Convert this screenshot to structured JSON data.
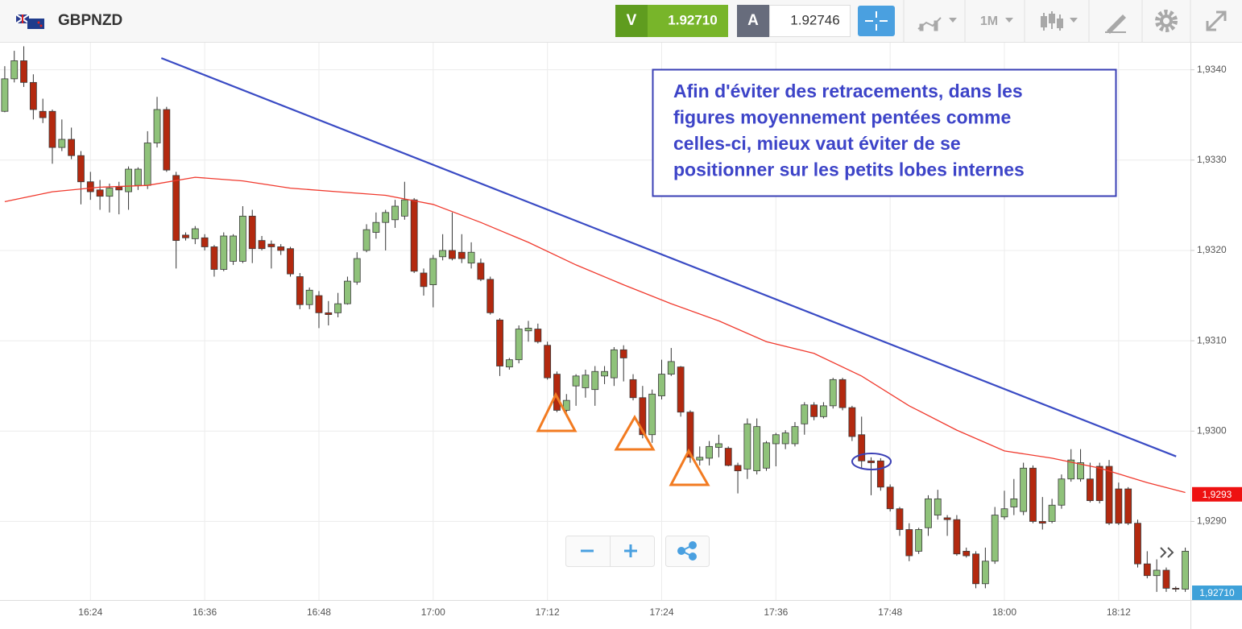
{
  "toolbar": {
    "symbol": "GBPNZD",
    "sell": {
      "label": "V",
      "price": "1.92710"
    },
    "buy": {
      "label": "A",
      "price": "1.92746"
    },
    "period": "1M"
  },
  "chart_data": {
    "type": "candlestick",
    "categories": [
      null,
      null,
      null,
      null,
      null,
      null,
      null,
      null,
      null,
      "16:24",
      null,
      null,
      null,
      null,
      null,
      null,
      null,
      null,
      null,
      null,
      null,
      "16:36",
      null,
      null,
      null,
      null,
      null,
      null,
      null,
      null,
      null,
      null,
      null,
      "16:48",
      null,
      null,
      null,
      null,
      null,
      null,
      null,
      null,
      null,
      null,
      null,
      "17:00",
      null,
      null,
      null,
      null,
      null,
      null,
      null,
      null,
      null,
      null,
      null,
      "17:12",
      null,
      null,
      null,
      null,
      null,
      null,
      null,
      null,
      null,
      null,
      null,
      "17:24",
      null,
      null,
      null,
      null,
      null,
      null,
      null,
      null,
      null,
      null,
      null,
      "17:36",
      null,
      null,
      null,
      null,
      null,
      null,
      null,
      null,
      null,
      null,
      null,
      "17:48",
      null,
      null,
      null,
      null,
      null,
      null,
      null,
      null,
      null,
      null,
      null,
      "18:00",
      null,
      null,
      null,
      null,
      null,
      null,
      null,
      null,
      null,
      null,
      null,
      "18:12",
      null,
      null,
      null,
      null,
      null,
      null,
      null
    ],
    "open": [
      1.93354,
      1.9339,
      1.9341,
      1.93386,
      1.93354,
      1.93354,
      1.93314,
      1.93323,
      1.93305,
      1.93276,
      1.93267,
      1.9326,
      1.9327,
      1.93265,
      1.93272,
      1.93272,
      1.93319,
      1.93356,
      1.93283,
      1.93217,
      1.93213,
      1.93214,
      1.93204,
      1.93179,
      1.93188,
      1.93188,
      1.93238,
      1.93211,
      1.93207,
      1.93204,
      1.93202,
      1.93171,
      1.9314,
      1.9315,
      1.93131,
      1.93131,
      1.93141,
      1.93165,
      1.932,
      1.9322,
      1.93231,
      1.93234,
      1.93238,
      1.93256,
      1.93175,
      1.93162,
      1.93193,
      1.932,
      1.93198,
      1.93186,
      1.93186,
      1.93168,
      1.93123,
      1.93071,
      1.93079,
      1.93111,
      1.93113,
      1.93095,
      1.93063,
      1.93023,
      1.9305,
      1.93048,
      1.93046,
      1.93061,
      1.93059,
      1.9309,
      1.93057,
      1.93037,
      1.92996,
      1.93039,
      1.93063,
      1.93071,
      1.93021,
      1.92968,
      1.9297,
      1.92982,
      1.92981,
      1.92962,
      1.92958,
      1.92956,
      1.92959,
      1.92986,
      1.92986,
      1.92986,
      1.93008,
      1.93029,
      1.93016,
      1.93028,
      1.93057,
      1.93026,
      1.92996,
      1.92967,
      1.92967,
      1.92938,
      1.92914,
      1.92891,
      1.92867,
      1.92893,
      1.92907,
      1.92904,
      1.92902,
      1.92867,
      1.92864,
      1.92831,
      1.92856,
      1.92905,
      1.92916,
      1.92911,
      1.92959,
      1.929,
      1.929,
      1.92918,
      1.92947,
      1.92947,
      1.92947,
      1.92961,
      1.92961,
      1.92936,
      1.92936,
      1.92898,
      1.92853,
      1.9284,
      1.92846,
      1.92826,
      1.92825
    ],
    "high": [
      1.93404,
      1.93421,
      1.93426,
      1.93395,
      1.93368,
      1.93356,
      1.93345,
      1.93336,
      1.9331,
      1.93287,
      1.93278,
      1.93274,
      1.93276,
      1.93293,
      1.93292,
      1.93332,
      1.9337,
      1.93359,
      1.93287,
      1.9322,
      1.93227,
      1.93218,
      1.93206,
      1.9322,
      1.93218,
      1.93249,
      1.93245,
      1.93216,
      1.93211,
      1.93207,
      1.93204,
      1.93175,
      1.93159,
      1.93155,
      1.93144,
      1.93153,
      1.93171,
      1.93198,
      1.93229,
      1.93242,
      1.93245,
      1.93256,
      1.93276,
      1.93258,
      1.9318,
      1.93195,
      1.93218,
      1.93242,
      1.93218,
      1.93209,
      1.93191,
      1.93171,
      1.93125,
      1.93081,
      1.93117,
      1.93122,
      1.93119,
      1.93099,
      1.93066,
      1.93041,
      1.93063,
      1.93068,
      1.93072,
      1.93072,
      1.93093,
      1.93095,
      1.93063,
      1.9305,
      1.93046,
      1.93079,
      1.93092,
      1.93072,
      1.93023,
      1.92983,
      1.92989,
      1.92996,
      1.92983,
      1.92965,
      1.93014,
      1.93014,
      1.92989,
      1.92998,
      1.93001,
      1.9301,
      1.93032,
      1.93032,
      1.93032,
      1.93059,
      1.93059,
      1.93028,
      1.93016,
      1.92971,
      1.9297,
      1.92941,
      1.92916,
      1.92898,
      1.92893,
      1.92929,
      1.92935,
      1.92907,
      1.92907,
      1.92871,
      1.92867,
      1.92871,
      1.92916,
      1.92934,
      1.92947,
      1.92965,
      1.92962,
      1.92927,
      1.92925,
      1.92952,
      1.9298,
      1.9298,
      1.92965,
      1.92965,
      1.92968,
      1.92943,
      1.92938,
      1.92902,
      1.92867,
      1.92858,
      1.92849,
      1.92828,
      1.92871
    ],
    "low": [
      1.93353,
      1.93386,
      1.93381,
      1.93345,
      1.93341,
      1.93296,
      1.9331,
      1.93301,
      1.93251,
      1.93256,
      1.93245,
      1.93242,
      1.9324,
      1.93245,
      1.93267,
      1.93268,
      1.93314,
      1.93287,
      1.9318,
      1.93211,
      1.93207,
      1.932,
      1.93171,
      1.93177,
      1.93184,
      1.93186,
      1.93186,
      1.932,
      1.9318,
      1.93195,
      1.93171,
      1.93135,
      1.93135,
      1.93114,
      1.93117,
      1.93126,
      1.9314,
      1.93162,
      1.93198,
      1.93213,
      1.932,
      1.93225,
      1.93234,
      1.93175,
      1.9315,
      1.93137,
      1.93189,
      1.93189,
      1.93186,
      1.9318,
      1.93166,
      1.93129,
      1.93061,
      1.93068,
      1.93075,
      1.93099,
      1.93097,
      1.93057,
      1.93021,
      1.93021,
      1.93028,
      1.93037,
      1.93028,
      1.93052,
      1.9305,
      1.93055,
      1.93034,
      1.92992,
      1.92987,
      1.93035,
      1.93061,
      1.93016,
      1.92965,
      1.92962,
      1.92962,
      1.92971,
      1.92961,
      1.92931,
      1.92947,
      1.92952,
      1.92956,
      1.92961,
      1.9298,
      1.92983,
      1.92996,
      1.93012,
      1.93014,
      1.93025,
      1.93023,
      1.92989,
      1.92959,
      1.92929,
      1.92934,
      1.92911,
      1.92884,
      1.92856,
      1.92864,
      1.92884,
      1.92902,
      1.92884,
      1.92862,
      1.9286,
      1.92826,
      1.92826,
      1.92853,
      1.92902,
      1.92907,
      1.92907,
      1.92898,
      1.92891,
      1.92898,
      1.92914,
      1.92944,
      1.92944,
      1.92921,
      1.9292,
      1.92896,
      1.92896,
      1.92896,
      1.92849,
      1.92837,
      1.92822,
      1.92822,
      1.92822,
      1.92822
    ],
    "close": [
      1.9339,
      1.9341,
      1.93386,
      1.93356,
      1.93347,
      1.93314,
      1.93323,
      1.93305,
      1.93276,
      1.93265,
      1.9326,
      1.93269,
      1.93267,
      1.9329,
      1.9329,
      1.93319,
      1.93356,
      1.93289,
      1.93211,
      1.93214,
      1.93224,
      1.93204,
      1.93179,
      1.93216,
      1.93216,
      1.93238,
      1.93202,
      1.93202,
      1.93204,
      1.932,
      1.93174,
      1.9314,
      1.93156,
      1.93131,
      1.93129,
      1.93141,
      1.93166,
      1.93191,
      1.93223,
      1.93231,
      1.93242,
      1.93249,
      1.93256,
      1.93177,
      1.9316,
      1.93191,
      1.932,
      1.93191,
      1.93191,
      1.93198,
      1.93168,
      1.93131,
      1.93072,
      1.93079,
      1.93113,
      1.93114,
      1.93099,
      1.93059,
      1.93023,
      1.93034,
      1.93061,
      1.93062,
      1.93066,
      1.93066,
      1.9309,
      1.93081,
      1.93037,
      1.92996,
      1.93041,
      1.93063,
      1.93077,
      1.93021,
      1.92971,
      1.92971,
      1.92983,
      1.92986,
      1.92962,
      1.92956,
      1.93008,
      1.93005,
      1.92987,
      1.92996,
      1.92998,
      1.93005,
      1.93029,
      1.93016,
      1.93028,
      1.93057,
      1.93026,
      1.92994,
      1.92967,
      1.92965,
      1.92938,
      1.92914,
      1.92891,
      1.92862,
      1.92891,
      1.92925,
      1.92925,
      1.92902,
      1.92864,
      1.92862,
      1.92831,
      1.92856,
      1.92907,
      1.92914,
      1.92925,
      1.92959,
      1.929,
      1.92898,
      1.92918,
      1.92947,
      1.92968,
      1.92965,
      1.92923,
      1.92923,
      1.92898,
      1.92898,
      1.92898,
      1.92853,
      1.9284,
      1.92846,
      1.92826,
      1.92825,
      1.92867
    ],
    "up_color": "#8fc27a",
    "down_color": "#b3290f",
    "ylim": [
      1.92813,
      1.9343
    ],
    "yticks": [
      {
        "value": 1.929,
        "label": "1,9290"
      },
      {
        "value": 1.93,
        "label": "1,9300"
      },
      {
        "value": 1.931,
        "label": "1,9310"
      },
      {
        "value": 1.932,
        "label": "1,9320"
      },
      {
        "value": 1.933,
        "label": "1,9330"
      },
      {
        "value": 1.934,
        "label": "1,9340"
      }
    ],
    "grid": true,
    "moving_average": {
      "color": "#f03a2e",
      "x": [
        0,
        5,
        10,
        15,
        20,
        25,
        30,
        35,
        40,
        45,
        50,
        55,
        60,
        65,
        70,
        75,
        80,
        85,
        90,
        95,
        100,
        105,
        110,
        115,
        120,
        124
      ],
      "values": [
        1.93254,
        1.93265,
        1.9327,
        1.93272,
        1.93281,
        1.93277,
        1.93269,
        1.93265,
        1.93261,
        1.93251,
        1.93231,
        1.93209,
        1.93184,
        1.93162,
        1.93141,
        1.93122,
        1.93099,
        1.93086,
        1.93061,
        1.93028,
        1.93001,
        1.92978,
        1.9297,
        1.92959,
        1.92943,
        1.92932
      ]
    },
    "trendline": {
      "color": "#3a4bc4",
      "x": [
        16.45,
        123.04
      ],
      "values": [
        1.93413,
        1.92972
      ]
    },
    "price_tags": [
      {
        "value": 1.9293,
        "label": "1,9293",
        "color": "#ee1111"
      },
      {
        "value": 1.9271,
        "label": "1,92710",
        "color": "#3ea1d9"
      }
    ],
    "annotation": {
      "color": "#3d44c8",
      "lines": [
        "Afin d'éviter des retracements, dans les",
        "figures moyennement pentées comme",
        "celles-ci, mieux vaut éviter de se",
        "positionner sur les petits lobes internes"
      ]
    }
  }
}
